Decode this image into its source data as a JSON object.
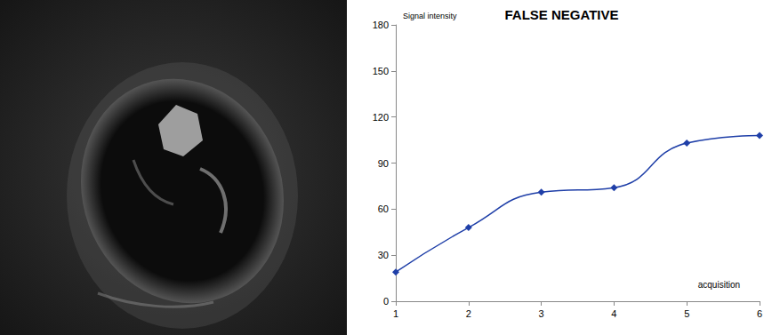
{
  "chart_data": {
    "type": "line",
    "title": "FALSE NEGATIVE",
    "y_label": "Signal intensity",
    "x_label": "acquisition",
    "x": [
      1,
      2,
      3,
      4,
      5,
      6
    ],
    "values": [
      19,
      48,
      71,
      74,
      103,
      108
    ],
    "color": "#1f3fa8",
    "marker": "diamond",
    "line_style": "smooth",
    "xlim": [
      1,
      6
    ],
    "xticks": [
      1,
      2,
      3,
      4,
      5,
      6
    ],
    "ylim": [
      0,
      180
    ],
    "yticks": [
      0,
      30,
      60,
      90,
      120,
      150,
      180
    ],
    "grid": false
  }
}
